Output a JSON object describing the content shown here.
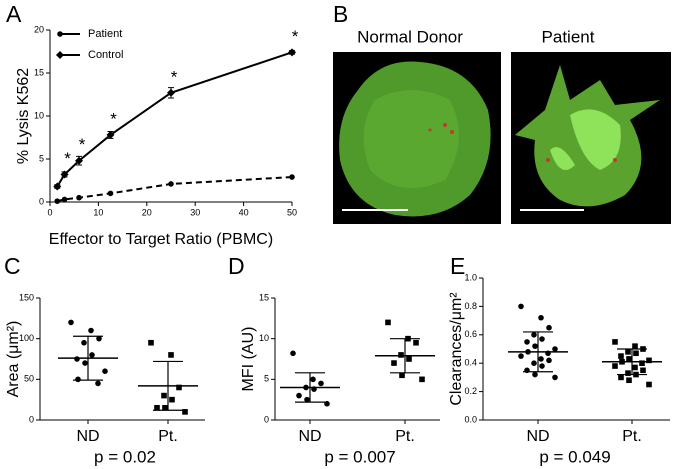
{
  "chart_data": [
    {
      "type": "line",
      "panel": "A",
      "ylabel": "% Lysis K562",
      "xlabel": "Effector to Target Ratio (PBMC)",
      "x": [
        1.5,
        3,
        6,
        12.5,
        25,
        50
      ],
      "series": [
        {
          "name": "Patient",
          "color": "#000000",
          "marker": "circle",
          "dash": true,
          "values": [
            0.1,
            0.3,
            0.5,
            1.0,
            2.1,
            2.9
          ]
        },
        {
          "name": "Control",
          "color": "#000000",
          "marker": "diamond",
          "dash": false,
          "values": [
            1.8,
            3.2,
            4.8,
            7.8,
            12.7,
            17.4
          ],
          "errors": [
            0.2,
            0.3,
            0.5,
            0.4,
            0.6,
            0.2
          ],
          "significance": [
            null,
            "*",
            "*",
            "*",
            "*",
            "*"
          ]
        }
      ],
      "xlim": [
        0,
        50
      ],
      "xticks": [
        0,
        10,
        20,
        30,
        40,
        50
      ],
      "ylim": [
        0,
        20
      ],
      "yticks": [
        0,
        5,
        10,
        15,
        20
      ],
      "legend": "upper left"
    },
    {
      "type": "dot_plot",
      "panel": "C",
      "ylabel": "Area (μm²)",
      "annotation": "p = 0.02",
      "categories": [
        "ND",
        "Pt."
      ],
      "groups": [
        {
          "marker": "circle",
          "values": [
            120,
            110,
            100,
            95,
            80,
            75,
            70,
            60,
            50,
            45
          ],
          "mean": 76,
          "sd": 27
        },
        {
          "marker": "square",
          "values": [
            95,
            80,
            40,
            30,
            25,
            15,
            15,
            10
          ],
          "mean": 42,
          "sd": 30
        }
      ],
      "ylim": [
        0,
        150
      ],
      "yticks": [
        0,
        50,
        100,
        150
      ]
    },
    {
      "type": "dot_plot",
      "panel": "D",
      "ylabel": "MFI (AU)",
      "annotation": "p = 0.007",
      "categories": [
        "ND",
        "Pt."
      ],
      "groups": [
        {
          "marker": "circle",
          "values": [
            8.2,
            5.0,
            4.5,
            4.0,
            3.8,
            3.0,
            2.5,
            2.0
          ],
          "mean": 4.0,
          "sd": 1.8
        },
        {
          "marker": "square",
          "values": [
            12,
            10,
            9.5,
            8,
            7.5,
            7,
            5.5,
            5
          ],
          "mean": 7.9,
          "sd": 2.1
        }
      ],
      "ylim": [
        0,
        15
      ],
      "yticks": [
        0,
        5,
        10,
        15
      ]
    },
    {
      "type": "dot_plot",
      "panel": "E",
      "ylabel": "Clearances/μm²",
      "annotation": "p = 0.049",
      "categories": [
        "ND",
        "Pt."
      ],
      "groups": [
        {
          "marker": "circle",
          "values": [
            0.8,
            0.72,
            0.65,
            0.6,
            0.57,
            0.55,
            0.52,
            0.5,
            0.48,
            0.47,
            0.45,
            0.43,
            0.42,
            0.4,
            0.38,
            0.35,
            0.32,
            0.3
          ],
          "mean": 0.48,
          "sd": 0.14
        },
        {
          "marker": "square",
          "values": [
            0.55,
            0.52,
            0.5,
            0.48,
            0.47,
            0.45,
            0.43,
            0.42,
            0.41,
            0.4,
            0.38,
            0.37,
            0.35,
            0.33,
            0.32,
            0.3,
            0.28,
            0.25
          ],
          "mean": 0.41,
          "sd": 0.09
        }
      ],
      "ylim": [
        0,
        1.0
      ],
      "yticks": [
        {
          "value": 0,
          "label": "0.0"
        },
        0.2,
        0.4,
        0.6,
        0.8,
        {
          "value": 1,
          "label": "1.0"
        }
      ]
    }
  ],
  "panel_b": {
    "panel": "B",
    "images": [
      {
        "title": "Normal Donor"
      },
      {
        "title": "Patient"
      }
    ]
  }
}
